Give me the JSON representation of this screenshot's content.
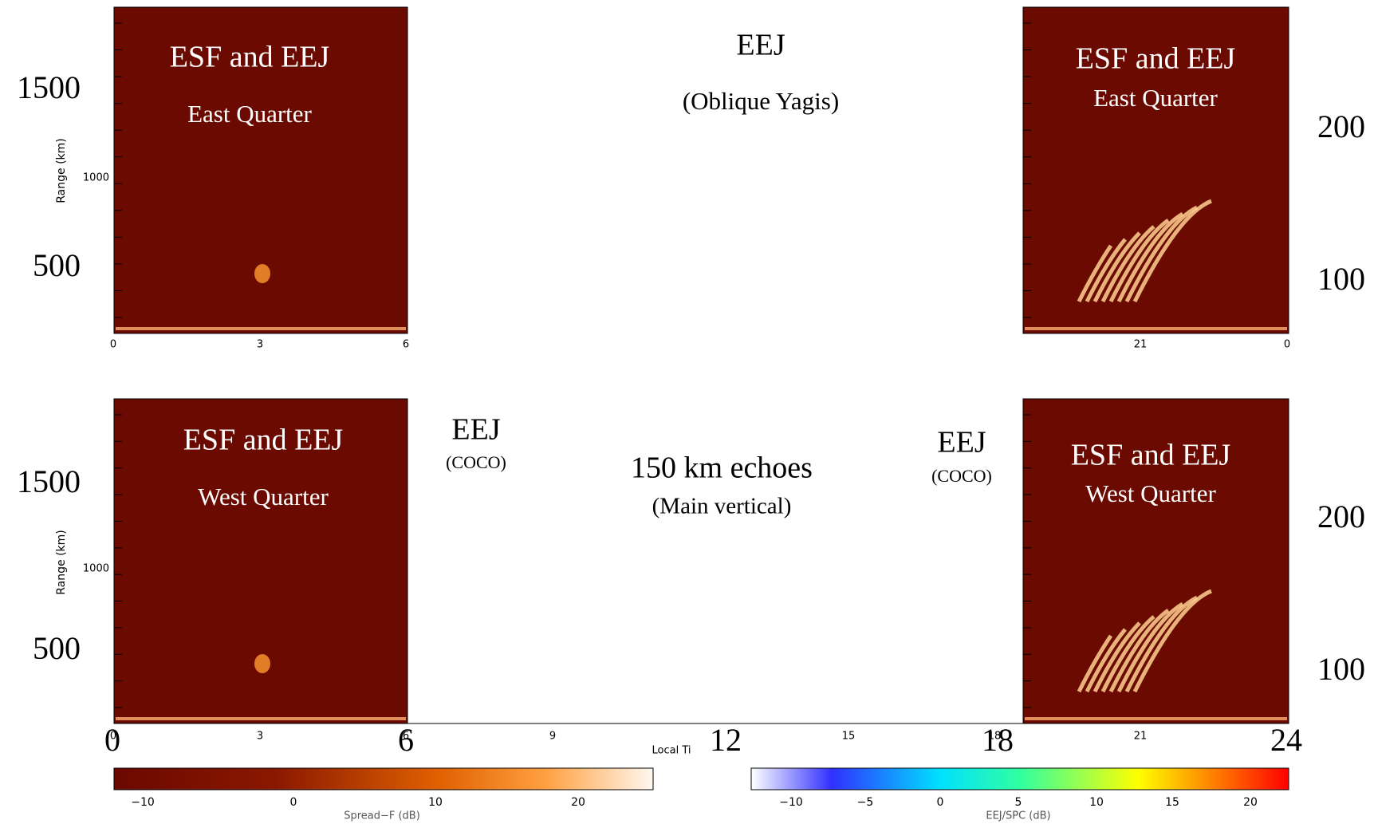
{
  "panels": [
    {
      "title": "ESF and EEJ",
      "subtitle": "East Quarter"
    },
    {
      "title": "ESF and EEJ",
      "subtitle": "East Quarter"
    },
    {
      "title": "ESF and EEJ",
      "subtitle": "West Quarter"
    },
    {
      "title": "ESF and EEJ",
      "subtitle": "West Quarter"
    }
  ],
  "annotations": [
    {
      "title": "EEJ",
      "subtitle": "(Oblique Yagis)"
    },
    {
      "title": "EEJ",
      "subtitle": "(COCO)"
    },
    {
      "title": "150 km echoes",
      "subtitle": "(Main vertical)"
    },
    {
      "title": "EEJ",
      "subtitle": "(COCO)"
    }
  ],
  "axes": {
    "y_label": "Range (km)",
    "small_y_tick": "1000",
    "range_labels": [
      "1500",
      "500"
    ],
    "right_labels": [
      "200",
      "100"
    ],
    "top_x_ticks": [
      "0",
      "3",
      "6",
      "21",
      "0"
    ],
    "bottom_x_ticks": [
      "0",
      "3",
      "6",
      "9",
      "Local Ti",
      "15",
      "18",
      "21"
    ],
    "big_x_labels": [
      "0",
      "6",
      "12",
      "18",
      "24"
    ]
  },
  "colorbars": [
    {
      "label": "Spread−F (dB)",
      "ticks": [
        "−10",
        "0",
        "10",
        "20"
      ]
    },
    {
      "label": "EEJ/SPC (dB)",
      "ticks": [
        "−10",
        "−5",
        "0",
        "5",
        "10",
        "15",
        "20"
      ]
    }
  ]
}
